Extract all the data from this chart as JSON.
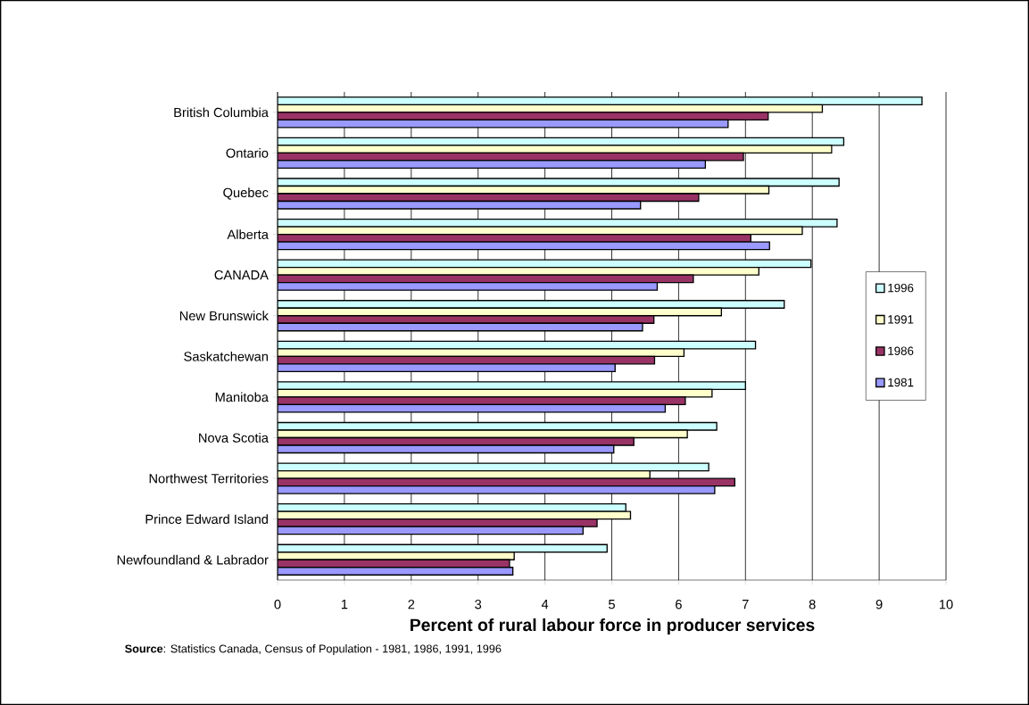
{
  "chart_data": {
    "type": "bar",
    "orientation": "horizontal",
    "xlabel": "Percent of rural labour force in producer services",
    "categories": [
      "British Columbia",
      "Ontario",
      "Quebec",
      "Alberta",
      "CANADA",
      "New Brunswick",
      "Saskatchewan",
      "Manitoba",
      "Nova Scotia",
      "Northwest Territories",
      "Prince Edward Island",
      "Newfoundland & Labrador"
    ],
    "series": [
      {
        "name": "1996",
        "color": "#ccffff",
        "values": [
          9.64,
          8.47,
          8.4,
          8.37,
          7.98,
          7.58,
          7.15,
          7.0,
          6.57,
          6.45,
          5.21,
          4.93
        ]
      },
      {
        "name": "1991",
        "color": "#ffffcc",
        "values": [
          8.15,
          8.29,
          7.35,
          7.85,
          7.2,
          6.64,
          6.08,
          6.5,
          6.13,
          5.57,
          5.28,
          3.54
        ]
      },
      {
        "name": "1986",
        "color": "#993366",
        "values": [
          7.34,
          6.97,
          6.3,
          7.08,
          6.22,
          5.63,
          5.64,
          6.1,
          5.33,
          6.84,
          4.78,
          3.47
        ]
      },
      {
        "name": "1981",
        "color": "#9999ff",
        "values": [
          6.74,
          6.4,
          5.43,
          7.36,
          5.68,
          5.46,
          5.05,
          5.8,
          5.03,
          6.54,
          4.57,
          3.52
        ]
      }
    ],
    "xlim": [
      0,
      10
    ],
    "xticks": [
      0,
      1,
      2,
      3,
      4,
      5,
      6,
      7,
      8,
      9,
      10
    ],
    "grid": "x",
    "legend": "right",
    "annotations": [
      "**Source**: Statistics Canada, Census of Population - 1981, 1986, 1991, 1996"
    ]
  }
}
